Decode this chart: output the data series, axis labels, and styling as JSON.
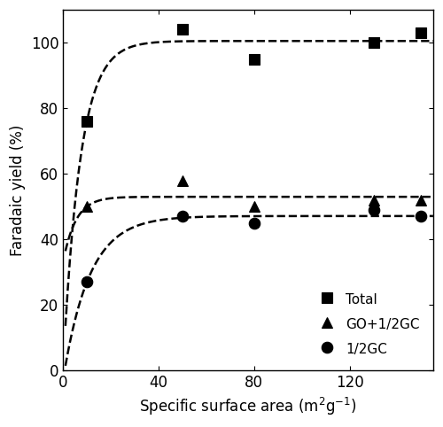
{
  "total_x": [
    10,
    50,
    80,
    130,
    150
  ],
  "total_y": [
    76,
    104,
    95,
    100,
    103
  ],
  "go_gc_x": [
    10,
    50,
    80,
    130,
    150
  ],
  "go_gc_y": [
    50,
    58,
    50,
    52,
    52
  ],
  "half_gc_x": [
    10,
    50,
    80,
    130,
    150
  ],
  "half_gc_y": [
    27,
    47,
    45,
    49,
    47
  ],
  "xlabel": "Specific surface area (m$^2$g$^{-1}$)",
  "ylabel": "Faradaic yield (%)",
  "xlim": [
    0,
    155
  ],
  "ylim": [
    0,
    110
  ],
  "xticks": [
    0,
    40,
    80,
    120
  ],
  "yticks": [
    0,
    20,
    40,
    60,
    80,
    100
  ],
  "legend_labels": [
    "Total",
    "GO+1/2GC",
    "1/2GC"
  ],
  "line_color": "black",
  "bg_color": "white",
  "marker_size": 9,
  "line_width": 1.8,
  "font_size": 12,
  "total_curve_params": [
    100.5,
    7.0,
    0.06
  ],
  "go_gc_curve_params": [
    53.0,
    3.5,
    0.03
  ],
  "half_gc_curve_params": [
    47.5,
    5.5,
    0.04
  ]
}
